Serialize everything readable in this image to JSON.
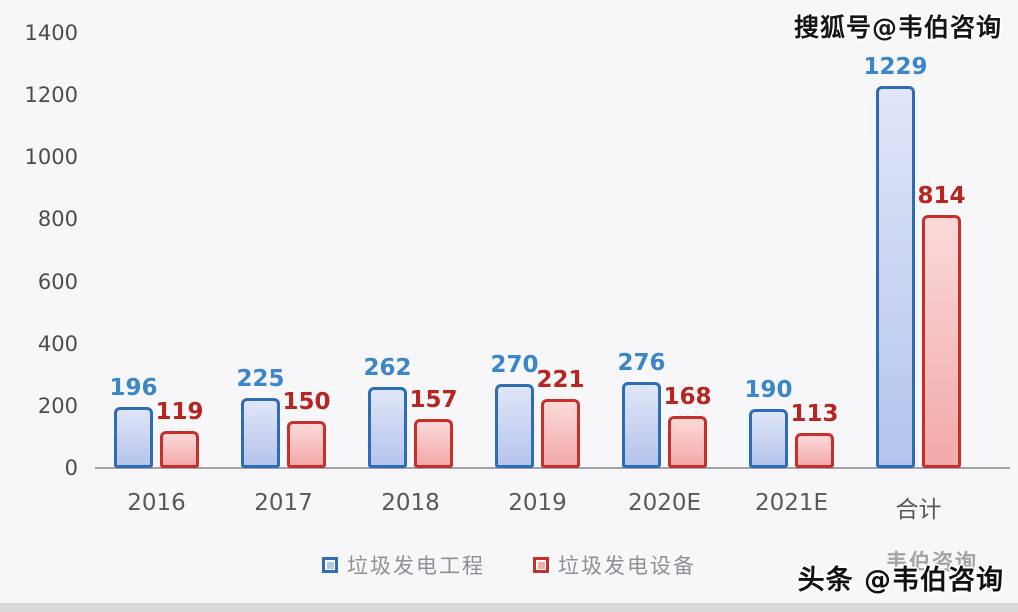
{
  "watermarks": {
    "top_right": "搜狐号@韦伯咨询",
    "bottom_right_faint": "韦伯咨询",
    "bottom_right_bold": "头条 @韦伯咨询"
  },
  "colors": {
    "blue_border": "#2e6db4",
    "blue_fill_top": "#e0e6f8",
    "blue_fill_bottom": "#b6c4ec",
    "blue_label": "#3b86c8",
    "red_border": "#c5302a",
    "red_fill_top": "#fbd9d9",
    "red_fill_bottom": "#f2a9a9",
    "red_label": "#b8241f",
    "axis_line": "#a2a2a8",
    "tick_text": "#4c4c4c",
    "category_text": "#595959",
    "legend_text": "#8f8f97"
  },
  "chart_data": {
    "type": "bar",
    "categories": [
      "2016",
      "2017",
      "2018",
      "2019",
      "2020E",
      "2021E",
      "合计"
    ],
    "series": [
      {
        "name": "垃圾发电工程",
        "color": "blue",
        "values": [
          196,
          225,
          262,
          270,
          276,
          190,
          1229
        ]
      },
      {
        "name": "垃圾发电设备",
        "color": "red",
        "values": [
          119,
          150,
          157,
          221,
          168,
          113,
          814
        ]
      }
    ],
    "title": "",
    "xlabel": "",
    "ylabel": "",
    "ylim": [
      0,
      1400
    ],
    "yticks": [
      0,
      200,
      400,
      600,
      800,
      1000,
      1200,
      1400
    ],
    "grid": false,
    "legend_position": "bottom",
    "data_labels": true
  }
}
